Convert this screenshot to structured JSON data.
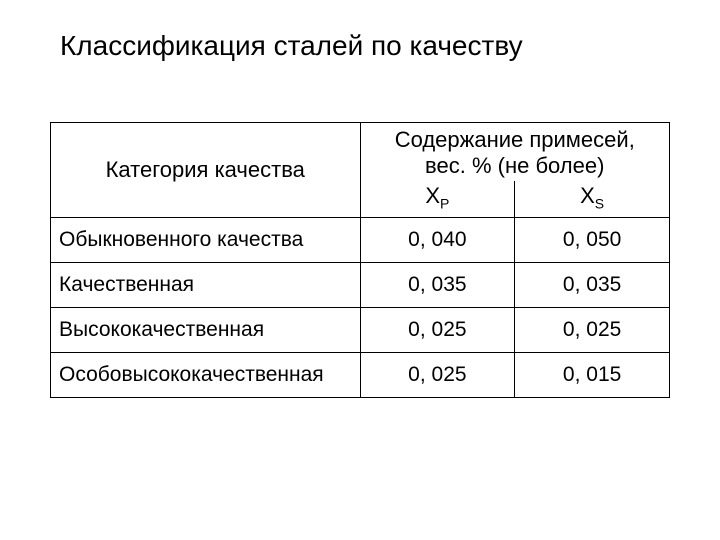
{
  "title": "Классификация сталей по качеству",
  "table": {
    "header": {
      "category": "Категория качества",
      "content_line1": "Содержание примесей,",
      "content_line2": "вес. % (не более)",
      "col_xp_base": "X",
      "col_xp_sub": "P",
      "col_xs_base": "X",
      "col_xs_sub": "S"
    },
    "rows": [
      {
        "category": "Обыкновенного качества",
        "xp": "0, 040",
        "xs": "0, 050"
      },
      {
        "category": "Качественная",
        "xp": "0, 035",
        "xs": "0, 035"
      },
      {
        "category": "Высококачественная",
        "xp": "0, 025",
        "xs": "0, 025"
      },
      {
        "category": "Особовысококачественная",
        "xp": "0, 025",
        "xs": "0, 015"
      }
    ],
    "colors": {
      "background": "#ffffff",
      "text": "#000000",
      "border": "#000000"
    },
    "fontsize_title": 28,
    "fontsize_header": 22,
    "fontsize_body": 21
  }
}
